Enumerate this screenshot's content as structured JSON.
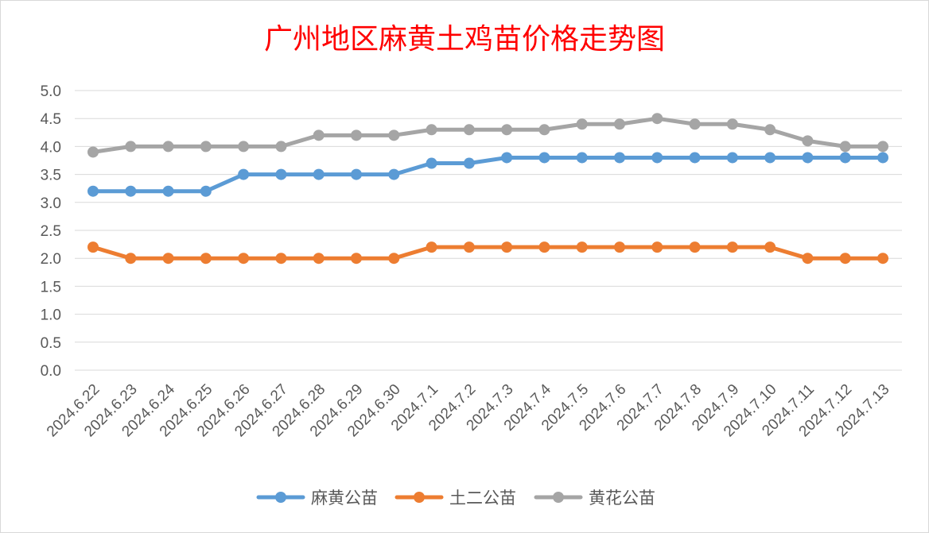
{
  "chart_data": {
    "type": "line",
    "title": "广州地区麻黄土鸡苗价格走势图",
    "xlabel": "",
    "ylabel": "",
    "ylim": [
      0,
      5
    ],
    "ytick_step": 0.5,
    "ytick_labels": [
      "0.0",
      "0.5",
      "1.0",
      "1.5",
      "2.0",
      "2.5",
      "3.0",
      "3.5",
      "4.0",
      "4.5",
      "5.0"
    ],
    "grid": true,
    "legend": "bottom",
    "categories": [
      "2024.6.22",
      "2024.6.23",
      "2024.6.24",
      "2024.6.25",
      "2024.6.26",
      "2024.6.27",
      "2024.6.28",
      "2024.6.29",
      "2024.6.30",
      "2024.7.1",
      "2024.7.2",
      "2024.7.3",
      "2024.7.4",
      "2024.7.5",
      "2024.7.6",
      "2024.7.7",
      "2024.7.8",
      "2024.7.9",
      "2024.7.10",
      "2024.7.11",
      "2024.7.12",
      "2024.7.13"
    ],
    "series": [
      {
        "name": "麻黄公苗",
        "color": "#5b9bd5",
        "values": [
          3.2,
          3.2,
          3.2,
          3.2,
          3.5,
          3.5,
          3.5,
          3.5,
          3.5,
          3.7,
          3.7,
          3.8,
          3.8,
          3.8,
          3.8,
          3.8,
          3.8,
          3.8,
          3.8,
          3.8,
          3.8,
          3.8
        ]
      },
      {
        "name": "土二公苗",
        "color": "#ed7d31",
        "values": [
          2.2,
          2.0,
          2.0,
          2.0,
          2.0,
          2.0,
          2.0,
          2.0,
          2.0,
          2.2,
          2.2,
          2.2,
          2.2,
          2.2,
          2.2,
          2.2,
          2.2,
          2.2,
          2.2,
          2.0,
          2.0,
          2.0
        ]
      },
      {
        "name": "黄花公苗",
        "color": "#a5a5a5",
        "values": [
          3.9,
          4.0,
          4.0,
          4.0,
          4.0,
          4.0,
          4.2,
          4.2,
          4.2,
          4.3,
          4.3,
          4.3,
          4.3,
          4.4,
          4.4,
          4.5,
          4.4,
          4.4,
          4.3,
          4.1,
          4.0,
          4.0
        ]
      }
    ]
  }
}
